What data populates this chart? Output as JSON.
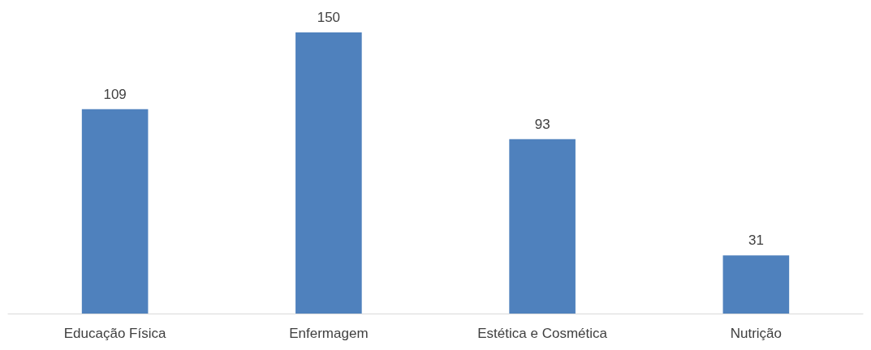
{
  "chart_data": {
    "type": "bar",
    "categories": [
      "Educação Física",
      "Enfermagem",
      "Estética e Cosmética",
      "Nutrição"
    ],
    "values": [
      109,
      150,
      93,
      31
    ],
    "color": "#4f81bd",
    "data_labels": true
  }
}
